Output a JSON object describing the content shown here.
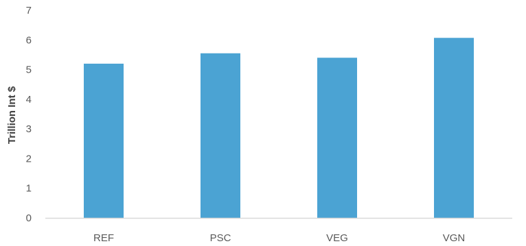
{
  "chart_data": {
    "type": "bar",
    "title": "",
    "xlabel": "",
    "ylabel": "Trillion Int $",
    "categories": [
      "REF",
      "PSC",
      "VEG",
      "VGN"
    ],
    "values": [
      5.2,
      5.55,
      5.4,
      6.07
    ],
    "ylim": [
      0,
      7
    ],
    "yticks": [
      "0",
      "1",
      "2",
      "3",
      "4",
      "5",
      "6",
      "7"
    ],
    "grid": false,
    "legend": "none",
    "bar_color": "#4BA3D3",
    "axis_color": "#D9D9D9"
  }
}
